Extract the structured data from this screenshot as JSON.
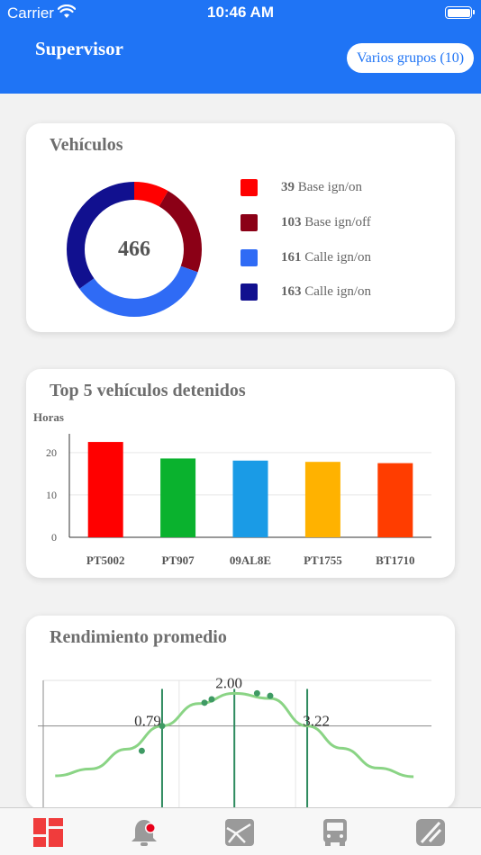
{
  "status_bar": {
    "carrier": "Carrier",
    "time": "10:46 AM"
  },
  "header": {
    "title": "Supervisor",
    "group_button": "Varios grupos (10)"
  },
  "vehicles_card": {
    "title": "Vehículos",
    "total": "466",
    "legend": [
      {
        "count": "39",
        "label": "Base ign/on",
        "color": "#ff0000"
      },
      {
        "count": "103",
        "label": "Base ign/off",
        "color": "#8b0016"
      },
      {
        "count": "161",
        "label": "Calle ign/on",
        "color": "#2f6bf5"
      },
      {
        "count": "163",
        "label": "Calle ign/on",
        "color": "#11108f"
      }
    ]
  },
  "stopped_card": {
    "title": "Top 5 vehículos detenidos",
    "ylabel": "Horas"
  },
  "performance_card": {
    "title": "Rendimiento promedio"
  },
  "tabs": [
    "dashboard-tab",
    "alerts-tab",
    "map-tab",
    "vehicles-tab",
    "routes-tab"
  ],
  "chart_data": [
    {
      "type": "pie",
      "categories": [
        "Base ign/on",
        "Base ign/off",
        "Calle ign/on",
        "Calle ign/on"
      ],
      "values": [
        39,
        103,
        161,
        163
      ],
      "colors": [
        "#ff0000",
        "#8b0016",
        "#2f6bf5",
        "#11108f"
      ],
      "center_label": "466"
    },
    {
      "type": "bar",
      "title": "Top 5 vehículos detenidos",
      "ylabel": "Horas",
      "categories": [
        "PT5002",
        "PT907",
        "09AL8E",
        "PT1755",
        "BT1710"
      ],
      "values": [
        22.5,
        18.6,
        18.1,
        17.8,
        17.5
      ],
      "colors": [
        "#ff0000",
        "#0ab22e",
        "#1a9be6",
        "#ffb200",
        "#ff3d00"
      ],
      "yticks": [
        0,
        10,
        20
      ],
      "ylim": [
        0,
        24
      ]
    },
    {
      "type": "line",
      "title": "Rendimiento promedio",
      "x": [
        -1,
        -0.4,
        0.2,
        0.79,
        1.4,
        2.0,
        2.6,
        3.22,
        3.8,
        4.4,
        5.0
      ],
      "y": [
        0.04,
        0.12,
        0.35,
        0.62,
        0.88,
        1.0,
        0.94,
        0.62,
        0.36,
        0.13,
        0.03
      ],
      "points": [
        {
          "x": 0.45,
          "y": 0.33
        },
        {
          "x": 0.79,
          "y": 0.62
        },
        {
          "x": 1.5,
          "y": 0.89
        },
        {
          "x": 1.62,
          "y": 0.93
        },
        {
          "x": 2.38,
          "y": 1.0
        },
        {
          "x": 2.6,
          "y": 0.97
        }
      ],
      "markers": [
        {
          "x": 0.79,
          "label": "0.79"
        },
        {
          "x": 2.0,
          "label": "2.00"
        },
        {
          "x": 3.22,
          "label": "3.22"
        }
      ],
      "xlim": [
        -1.2,
        5.3
      ],
      "ylim": [
        -0.4,
        1.15
      ],
      "grid": true
    }
  ]
}
